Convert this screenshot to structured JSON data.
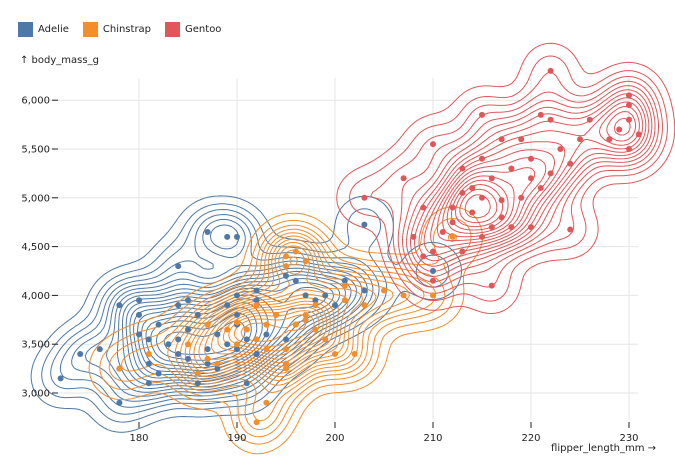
{
  "chart_data": {
    "type": "scatter",
    "overlay": "density-contours",
    "xlabel": "flipper_length_mm →",
    "ylabel": "↑ body_mass_g",
    "xlim": [
      171,
      232
    ],
    "ylim": [
      2700,
      6350
    ],
    "xticks": [
      "180",
      "190",
      "200",
      "210",
      "220",
      "230"
    ],
    "yticks": [
      "3,000",
      "3,500",
      "4,000",
      "4,500",
      "5,000",
      "5,500",
      "6,000"
    ],
    "xtick_values": [
      180,
      190,
      200,
      210,
      220,
      230
    ],
    "ytick_values": [
      3000,
      3500,
      4000,
      4500,
      5000,
      5500,
      6000
    ],
    "grid": true,
    "legend_position": "top-left",
    "series": [
      {
        "name": "Adelie",
        "color": "#4e79a7",
        "points": [
          [
            172,
            3150
          ],
          [
            174,
            3400
          ],
          [
            176,
            3450
          ],
          [
            178,
            3900
          ],
          [
            178,
            2900
          ],
          [
            178,
            3250
          ],
          [
            180,
            3800
          ],
          [
            180,
            3950
          ],
          [
            180,
            3600
          ],
          [
            181,
            3550
          ],
          [
            181,
            3300
          ],
          [
            182,
            3200
          ],
          [
            182,
            3700
          ],
          [
            183,
            3500
          ],
          [
            184,
            3400
          ],
          [
            184,
            3900
          ],
          [
            184,
            3550
          ],
          [
            185,
            3650
          ],
          [
            185,
            3950
          ],
          [
            185,
            3350
          ],
          [
            186,
            3100
          ],
          [
            186,
            3800
          ],
          [
            187,
            3450
          ],
          [
            187,
            4650
          ],
          [
            187,
            3300
          ],
          [
            188,
            3600
          ],
          [
            188,
            3250
          ],
          [
            189,
            3500
          ],
          [
            189,
            3900
          ],
          [
            190,
            3450
          ],
          [
            190,
            4000
          ],
          [
            190,
            3700
          ],
          [
            190,
            3800
          ],
          [
            191,
            3550
          ],
          [
            191,
            3100
          ],
          [
            192,
            3400
          ],
          [
            192,
            4050
          ],
          [
            192,
            3950
          ],
          [
            193,
            3600
          ],
          [
            194,
            3800
          ],
          [
            195,
            3550
          ],
          [
            195,
            4200
          ],
          [
            196,
            4150
          ],
          [
            196,
            3700
          ],
          [
            197,
            4000
          ],
          [
            198,
            3950
          ],
          [
            199,
            4000
          ],
          [
            200,
            3900
          ],
          [
            201,
            4150
          ],
          [
            203,
            4050
          ],
          [
            203,
            4725
          ],
          [
            210,
            4250
          ],
          [
            189,
            4600
          ],
          [
            190,
            4600
          ],
          [
            184,
            4300
          ],
          [
            181,
            3100
          ]
        ]
      },
      {
        "name": "Chinstrap",
        "color": "#f28e2c",
        "points": [
          [
            178,
            3250
          ],
          [
            181,
            3400
          ],
          [
            185,
            3500
          ],
          [
            186,
            3200
          ],
          [
            187,
            3350
          ],
          [
            187,
            3700
          ],
          [
            188,
            3300
          ],
          [
            189,
            3650
          ],
          [
            190,
            3500
          ],
          [
            190,
            3725
          ],
          [
            191,
            3650
          ],
          [
            192,
            3900
          ],
          [
            192,
            3550
          ],
          [
            193,
            3700
          ],
          [
            193,
            3450
          ],
          [
            194,
            3800
          ],
          [
            195,
            3300
          ],
          [
            195,
            3450
          ],
          [
            195,
            4300
          ],
          [
            195,
            4400
          ],
          [
            196,
            3700
          ],
          [
            196,
            4450
          ],
          [
            197,
            3750
          ],
          [
            197,
            3800
          ],
          [
            198,
            3650
          ],
          [
            198,
            3900
          ],
          [
            199,
            3550
          ],
          [
            200,
            3400
          ],
          [
            201,
            3950
          ],
          [
            201,
            4100
          ],
          [
            202,
            3400
          ],
          [
            203,
            3900
          ],
          [
            205,
            4050
          ],
          [
            207,
            4000
          ],
          [
            210,
            4000
          ],
          [
            212,
            4600
          ],
          [
            193,
            2900
          ],
          [
            192,
            2700
          ],
          [
            195,
            3250
          ],
          [
            197,
            4350
          ]
        ]
      },
      {
        "name": "Gentoo",
        "color": "#e15759",
        "points": [
          [
            203,
            5000
          ],
          [
            207,
            5200
          ],
          [
            208,
            4600
          ],
          [
            209,
            4900
          ],
          [
            209,
            4400
          ],
          [
            210,
            4150
          ],
          [
            210,
            4450
          ],
          [
            210,
            5550
          ],
          [
            211,
            4650
          ],
          [
            212,
            4750
          ],
          [
            212,
            4900
          ],
          [
            213,
            5300
          ],
          [
            213,
            4450
          ],
          [
            214,
            4850
          ],
          [
            214,
            5100
          ],
          [
            215,
            5400
          ],
          [
            215,
            4600
          ],
          [
            215,
            5000
          ],
          [
            215,
            5850
          ],
          [
            216,
            4700
          ],
          [
            216,
            5200
          ],
          [
            217,
            4800
          ],
          [
            217,
            5600
          ],
          [
            217,
            4975
          ],
          [
            218,
            5300
          ],
          [
            218,
            4700
          ],
          [
            219,
            5000
          ],
          [
            219,
            5600
          ],
          [
            220,
            5400
          ],
          [
            220,
            4700
          ],
          [
            221,
            5850
          ],
          [
            221,
            5100
          ],
          [
            222,
            5250
          ],
          [
            222,
            5800
          ],
          [
            223,
            5500
          ],
          [
            224,
            5350
          ],
          [
            225,
            5600
          ],
          [
            226,
            5800
          ],
          [
            228,
            5600
          ],
          [
            229,
            5700
          ],
          [
            230,
            5950
          ],
          [
            230,
            6050
          ],
          [
            230,
            5800
          ],
          [
            230,
            5500
          ],
          [
            231,
            5650
          ],
          [
            222,
            6300
          ],
          [
            216,
            4100
          ],
          [
            224,
            4675
          ],
          [
            214,
            4850
          ],
          [
            220,
            5200
          ],
          [
            213,
            5050
          ]
        ]
      }
    ]
  }
}
